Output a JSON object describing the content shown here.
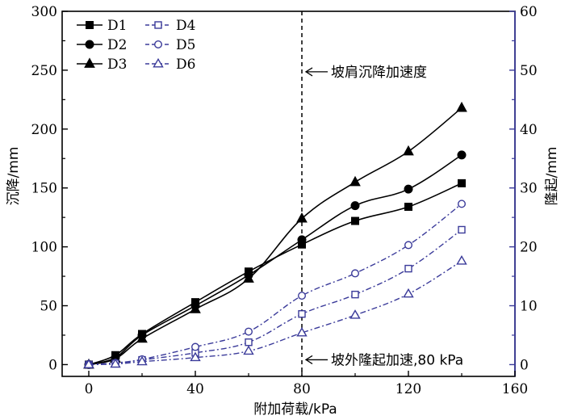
{
  "chart_data": {
    "type": "line",
    "xlabel": "附加荷载/kPa",
    "ylabel_left": "沉降/mm",
    "ylabel_right": "隆起/mm",
    "xlim": [
      -10,
      160
    ],
    "ylim_left": [
      -10,
      300
    ],
    "ylim_right": [
      -2,
      60
    ],
    "x_ticks": [
      0,
      40,
      80,
      120,
      160
    ],
    "y_ticks_left": [
      0,
      50,
      100,
      150,
      200,
      250,
      300
    ],
    "y_ticks_right": [
      0,
      10,
      20,
      30,
      40,
      50,
      60
    ],
    "x_tick_labels": [
      "0",
      "40",
      "80",
      "120",
      "160"
    ],
    "y_tick_labels_left": [
      "0",
      "50",
      "100",
      "150",
      "200",
      "250",
      "300"
    ],
    "y_tick_labels_right": [
      "0",
      "10",
      "20",
      "30",
      "40",
      "50",
      "60"
    ],
    "legend_position": "top-left",
    "grid": false,
    "vline": {
      "x": 80,
      "style": "dashed"
    },
    "annotations": [
      {
        "text": "坡肩沉降加速度",
        "x": 80,
        "y": 250,
        "axis": "left"
      },
      {
        "text": "坡外隆起加速,80 kPa",
        "x": 80,
        "y": 0,
        "axis": "left"
      }
    ],
    "series": [
      {
        "name": "D1",
        "axis": "left",
        "marker": "square-filled",
        "color": "#000000",
        "style": "solid",
        "x": [
          0,
          10,
          20,
          40,
          60,
          80,
          100,
          120,
          140
        ],
        "y": [
          0,
          8,
          26,
          53,
          79,
          102,
          122,
          134,
          154
        ]
      },
      {
        "name": "D2",
        "axis": "left",
        "marker": "circle-filled",
        "color": "#000000",
        "style": "solid",
        "x": [
          0,
          10,
          20,
          40,
          60,
          80,
          100,
          120,
          140
        ],
        "y": [
          0,
          6,
          25,
          50,
          76,
          106,
          135,
          149,
          178
        ]
      },
      {
        "name": "D3",
        "axis": "left",
        "marker": "triangle-filled",
        "color": "#000000",
        "style": "solid",
        "x": [
          0,
          10,
          20,
          40,
          60,
          80,
          100,
          120,
          140
        ],
        "y": [
          0,
          5,
          22,
          47,
          73,
          124,
          155,
          181,
          218
        ]
      },
      {
        "name": "D4",
        "axis": "right",
        "marker": "square-open",
        "color": "#3b3b9a",
        "style": "dashdot",
        "x": [
          0,
          10,
          20,
          40,
          60,
          80,
          100,
          120,
          140
        ],
        "y": [
          0,
          0.2,
          0.8,
          2.0,
          3.8,
          8.6,
          11.9,
          16.3,
          22.9
        ]
      },
      {
        "name": "D5",
        "axis": "right",
        "marker": "circle-open",
        "color": "#3b3b9a",
        "style": "dashdot",
        "x": [
          0,
          10,
          20,
          40,
          60,
          80,
          100,
          120,
          140
        ],
        "y": [
          0,
          0.3,
          0.9,
          3.0,
          5.6,
          11.7,
          15.5,
          20.3,
          27.3
        ]
      },
      {
        "name": "D6",
        "axis": "right",
        "marker": "triangle-open",
        "color": "#3b3b9a",
        "style": "dashdot",
        "x": [
          0,
          10,
          20,
          40,
          60,
          80,
          100,
          120,
          140
        ],
        "y": [
          0,
          0.1,
          0.5,
          1.2,
          2.3,
          5.4,
          8.4,
          12.0,
          17.6
        ]
      }
    ]
  }
}
